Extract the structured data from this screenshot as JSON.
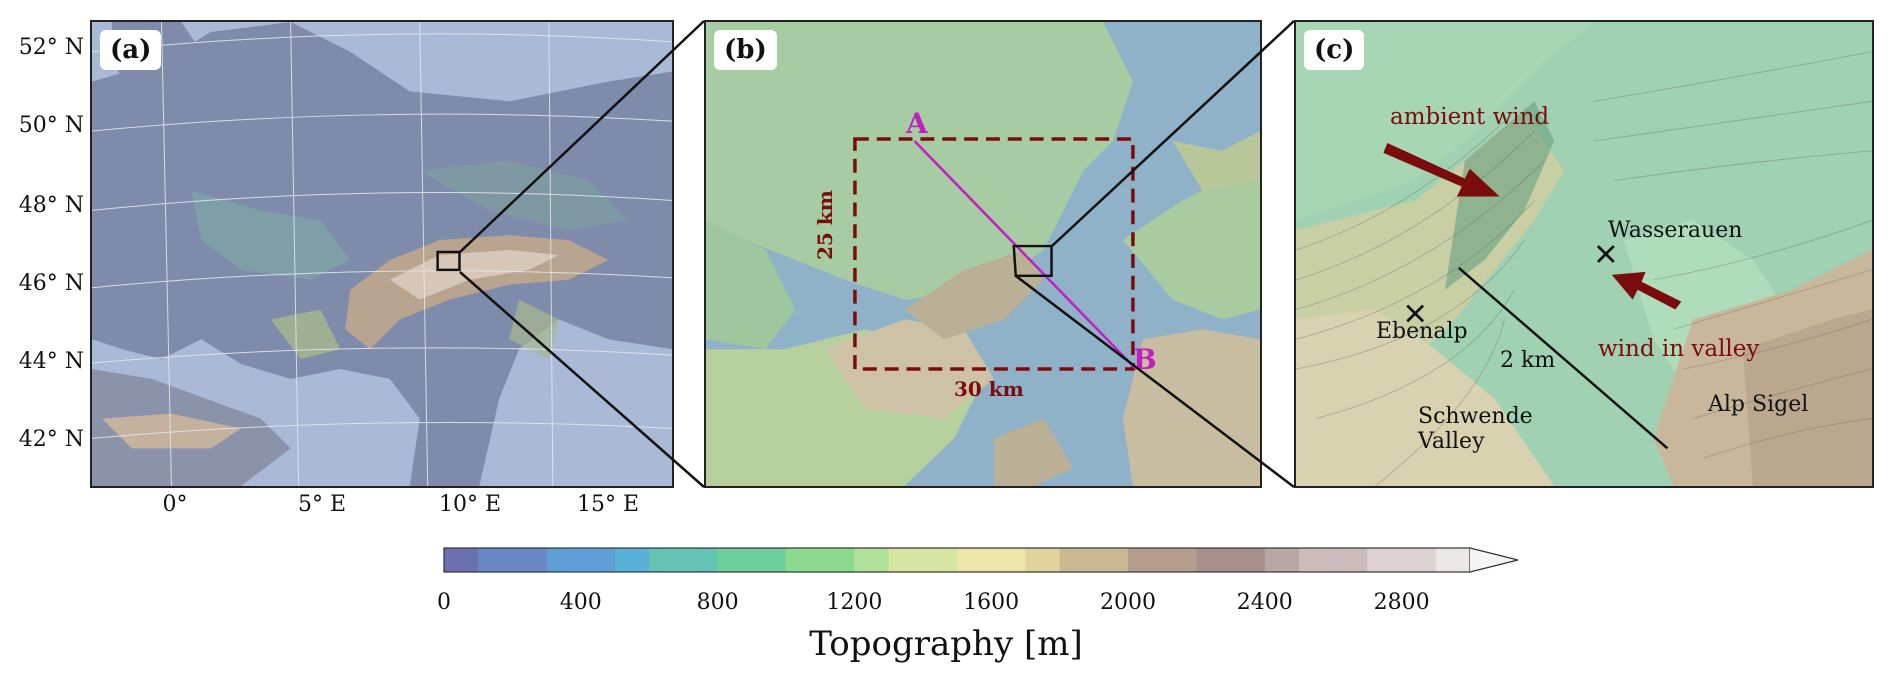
{
  "panels": {
    "a": {
      "label": "(a)",
      "lat_ticks": [
        "52° N",
        "50° N",
        "48° N",
        "46° N",
        "44° N",
        "42° N"
      ],
      "lon_ticks": [
        "0°",
        "5° E",
        "10° E",
        "15° E"
      ]
    },
    "b": {
      "label": "(b)",
      "point_a": "A",
      "point_b": "B",
      "box_height": "25 km",
      "box_width": "30 km"
    },
    "c": {
      "label": "(c)",
      "ambient_wind": "ambient wind",
      "wind_valley": "wind in valley",
      "wasserauen": "Wasserauen",
      "ebenalp": "Ebenalp",
      "scale": "2 km",
      "schwende_line1": "Schwende",
      "schwende_line2": "Valley",
      "alp_sigel": "Alp Sigel"
    }
  },
  "colorbar": {
    "ticks": [
      "0",
      "400",
      "800",
      "1200",
      "1600",
      "2000",
      "2400",
      "2800"
    ],
    "label": "Topography [m]",
    "range": [
      0,
      3000
    ],
    "extend": "max"
  },
  "colors": {
    "marker_magenta": "#c21ec2",
    "annotation_red": "#7a0c0c",
    "frame": "#222222"
  }
}
